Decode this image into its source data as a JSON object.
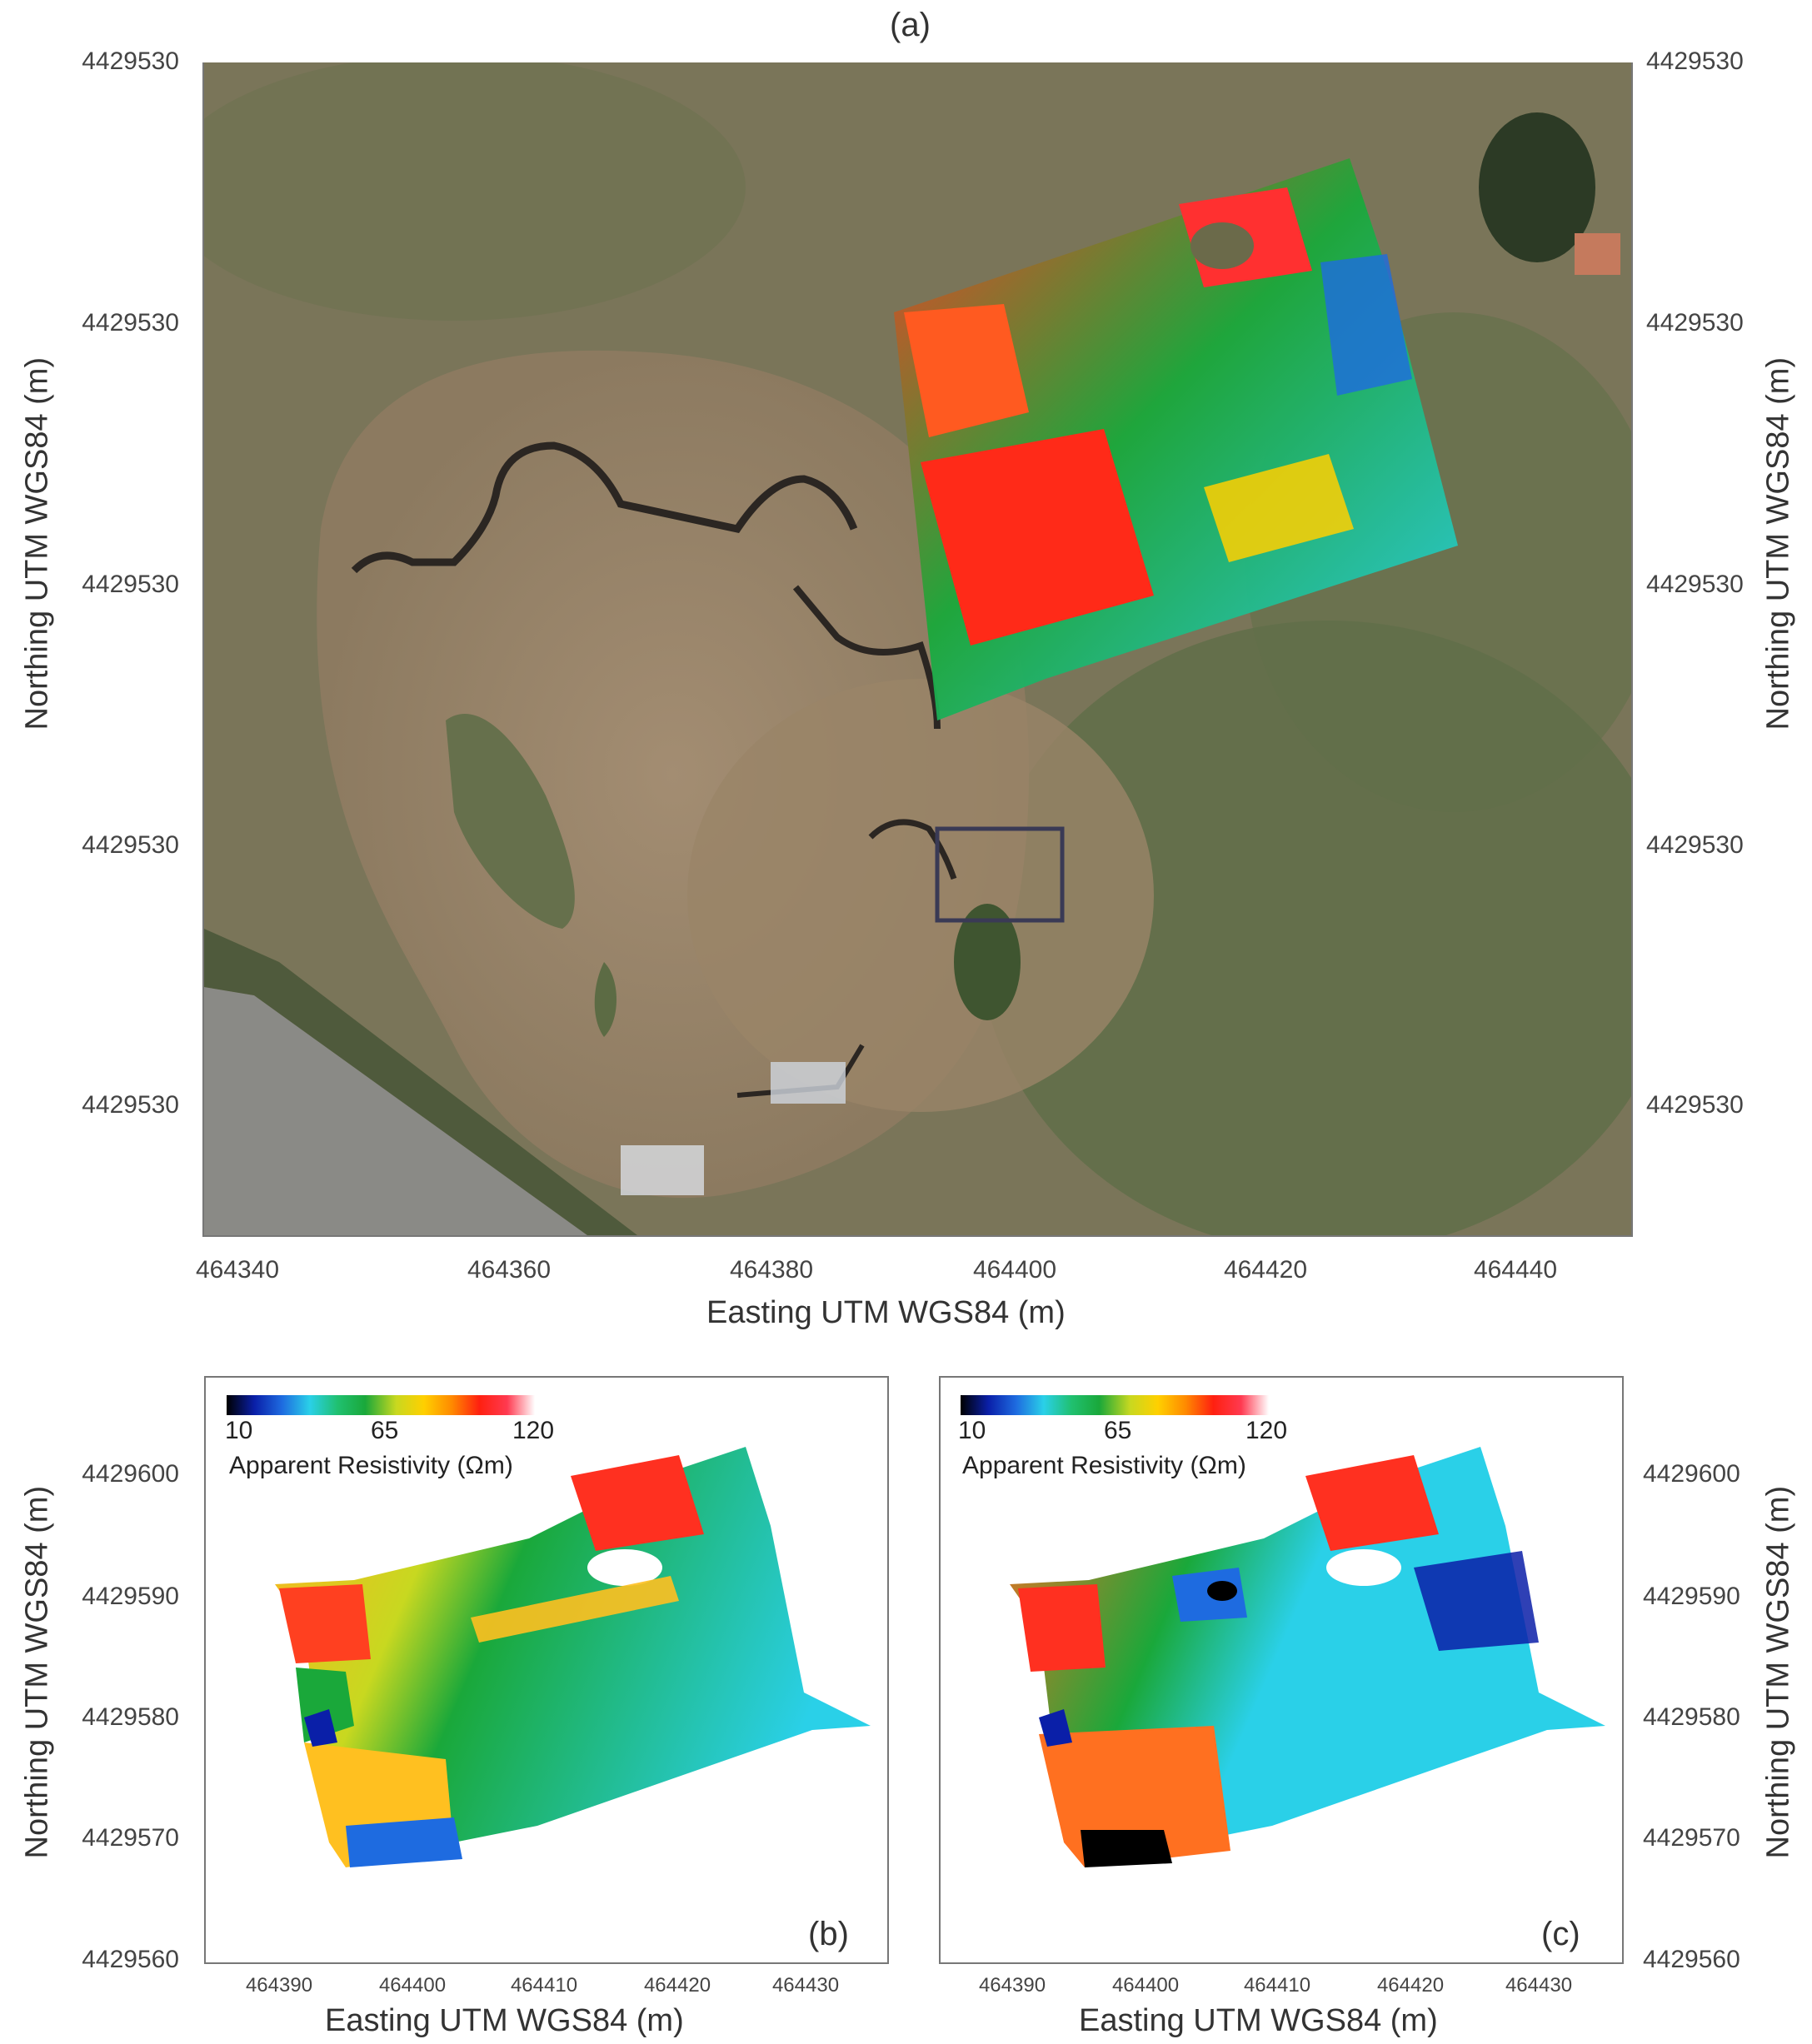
{
  "panel_a": {
    "label": "(a)",
    "y_ticks_left": [
      "4429530",
      "4429530",
      "4429530",
      "4429530",
      "4429530"
    ],
    "y_ticks_right": [
      "4429530",
      "4429530",
      "4429530",
      "4429530",
      "4429530"
    ],
    "x_ticks": [
      "464340",
      "464360",
      "464380",
      "464400",
      "464420",
      "464440"
    ],
    "x_title": "Easting UTM WGS84 (m)",
    "y_title_left": "Northing UTM WGS84 (m)",
    "y_title_right": "Northing UTM WGS84 (m)"
  },
  "panel_b": {
    "label": "(b)",
    "y_ticks": [
      "4429600",
      "4429590",
      "4429580",
      "4429570",
      "4429560"
    ],
    "x_ticks": [
      "464390",
      "464400",
      "464410",
      "464420",
      "464430"
    ],
    "x_title": "Easting UTM WGS84 (m)",
    "y_title": "Northing UTM WGS84 (m)"
  },
  "panel_c": {
    "label": "(c)",
    "y_ticks": [
      "4429600",
      "4429590",
      "4429580",
      "4429570",
      "4429560"
    ],
    "x_ticks": [
      "464390",
      "464400",
      "464410",
      "464420",
      "464430"
    ],
    "x_title": "Easting UTM WGS84 (m)",
    "y_title": "Northing UTM WGS84 (m)"
  },
  "colorbar": {
    "min": "10",
    "mid": "65",
    "max": "120",
    "title": "Apparent Resistivity (Ωm)",
    "stops": [
      "#000000",
      "#0a1fa8",
      "#1e6be0",
      "#2ad0e8",
      "#20c070",
      "#1aa83a",
      "#c8d820",
      "#ffd000",
      "#ff8a00",
      "#ff2010",
      "#ff3a50",
      "#ffffff"
    ]
  }
}
